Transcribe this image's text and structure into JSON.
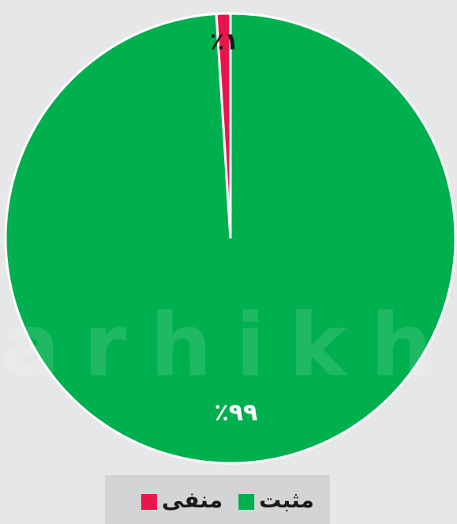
{
  "chart_data": {
    "type": "pie",
    "watermark": "farhikht",
    "categories": [
      "مثبت",
      "منفی"
    ],
    "values": [
      99,
      1
    ],
    "value_labels": [
      "٪۹۹",
      "٪۱"
    ],
    "colors": [
      "#00b04f",
      "#e8174a"
    ],
    "label_colors": [
      "#ffffff",
      "#1a1a1a"
    ],
    "legend": "bottom"
  }
}
